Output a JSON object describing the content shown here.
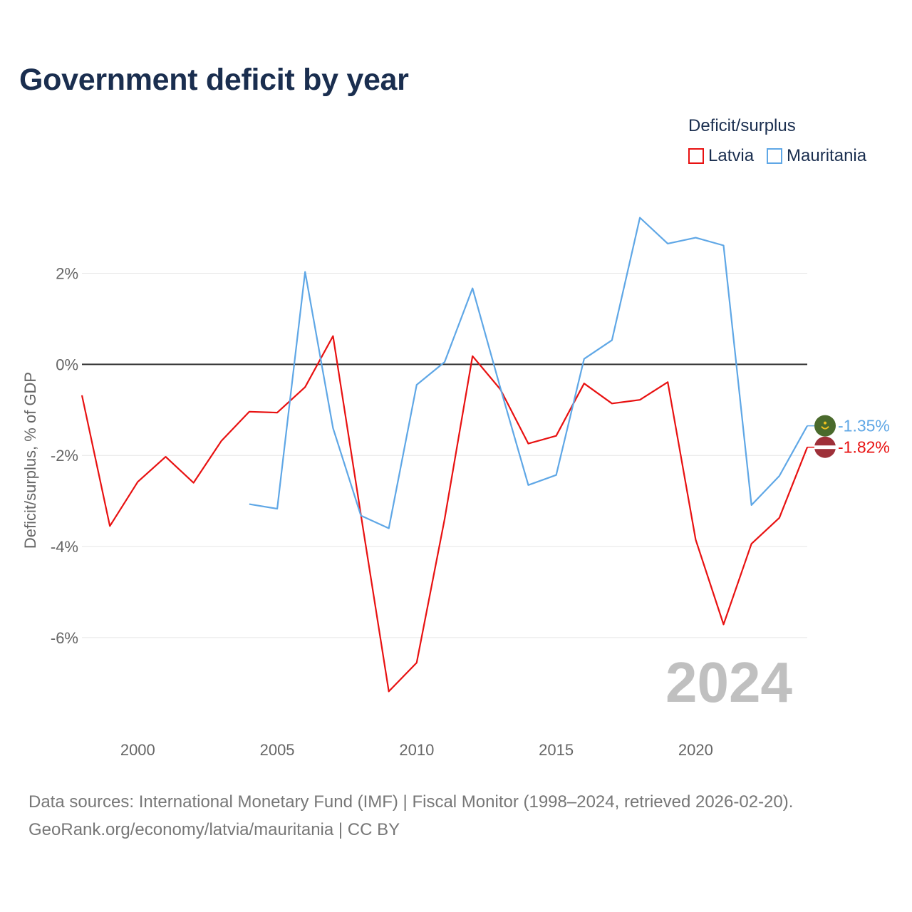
{
  "title": "Government deficit by year",
  "legend": {
    "title": "Deficit/surplus",
    "items": [
      {
        "name": "Latvia",
        "color": "#e81111"
      },
      {
        "name": "Mauritania",
        "color": "#5fa7e6"
      }
    ]
  },
  "watermark_year": "2024",
  "footer": {
    "line1": "Data sources: International Monetary Fund (IMF) | Fiscal Monitor (1998–2024, retrieved 2026-02-20).",
    "line2": "GeoRank.org/economy/latvia/mauritania | CC BY"
  },
  "chart_data": {
    "type": "line",
    "title": "Government deficit by year",
    "xlabel": "",
    "ylabel": "Deficit/surplus, % of GDP",
    "xlim": [
      1998,
      2024
    ],
    "ylim": [
      -7.8,
      3.9
    ],
    "x_ticks": [
      2000,
      2005,
      2010,
      2015,
      2020
    ],
    "y_ticks": [
      2,
      0,
      -2,
      -4,
      -6
    ],
    "y_tick_labels": [
      "2%",
      "0%",
      "-2%",
      "-4%",
      "-6%"
    ],
    "zero_line": true,
    "series": [
      {
        "name": "Latvia",
        "color": "#e81111",
        "end_label": "-1.82%",
        "x": [
          1998,
          1999,
          2000,
          2001,
          2002,
          2003,
          2004,
          2005,
          2006,
          2007,
          2008,
          2009,
          2010,
          2011,
          2012,
          2013,
          2014,
          2015,
          2016,
          2017,
          2018,
          2019,
          2020,
          2021,
          2022,
          2023,
          2024
        ],
        "values": [
          -0.68,
          -3.55,
          -2.58,
          -2.03,
          -2.6,
          -1.68,
          -1.04,
          -1.06,
          -0.5,
          0.62,
          -3.3,
          -7.18,
          -6.55,
          -3.4,
          0.18,
          -0.55,
          -1.74,
          -1.57,
          -0.42,
          -0.86,
          -0.78,
          -0.39,
          -3.85,
          -5.71,
          -3.94,
          -3.37,
          -1.82
        ]
      },
      {
        "name": "Mauritania",
        "color": "#5fa7e6",
        "end_label": "-1.35%",
        "x": [
          2004,
          2005,
          2006,
          2007,
          2008,
          2009,
          2010,
          2011,
          2012,
          2013,
          2014,
          2015,
          2016,
          2017,
          2018,
          2019,
          2020,
          2021,
          2022,
          2023,
          2024
        ],
        "values": [
          -3.07,
          -3.17,
          2.03,
          -1.4,
          -3.32,
          -3.6,
          -0.45,
          0.05,
          1.67,
          -0.52,
          -2.65,
          -2.43,
          0.12,
          0.53,
          3.22,
          2.65,
          2.78,
          2.61,
          -3.09,
          -2.45,
          -1.35
        ]
      }
    ]
  }
}
